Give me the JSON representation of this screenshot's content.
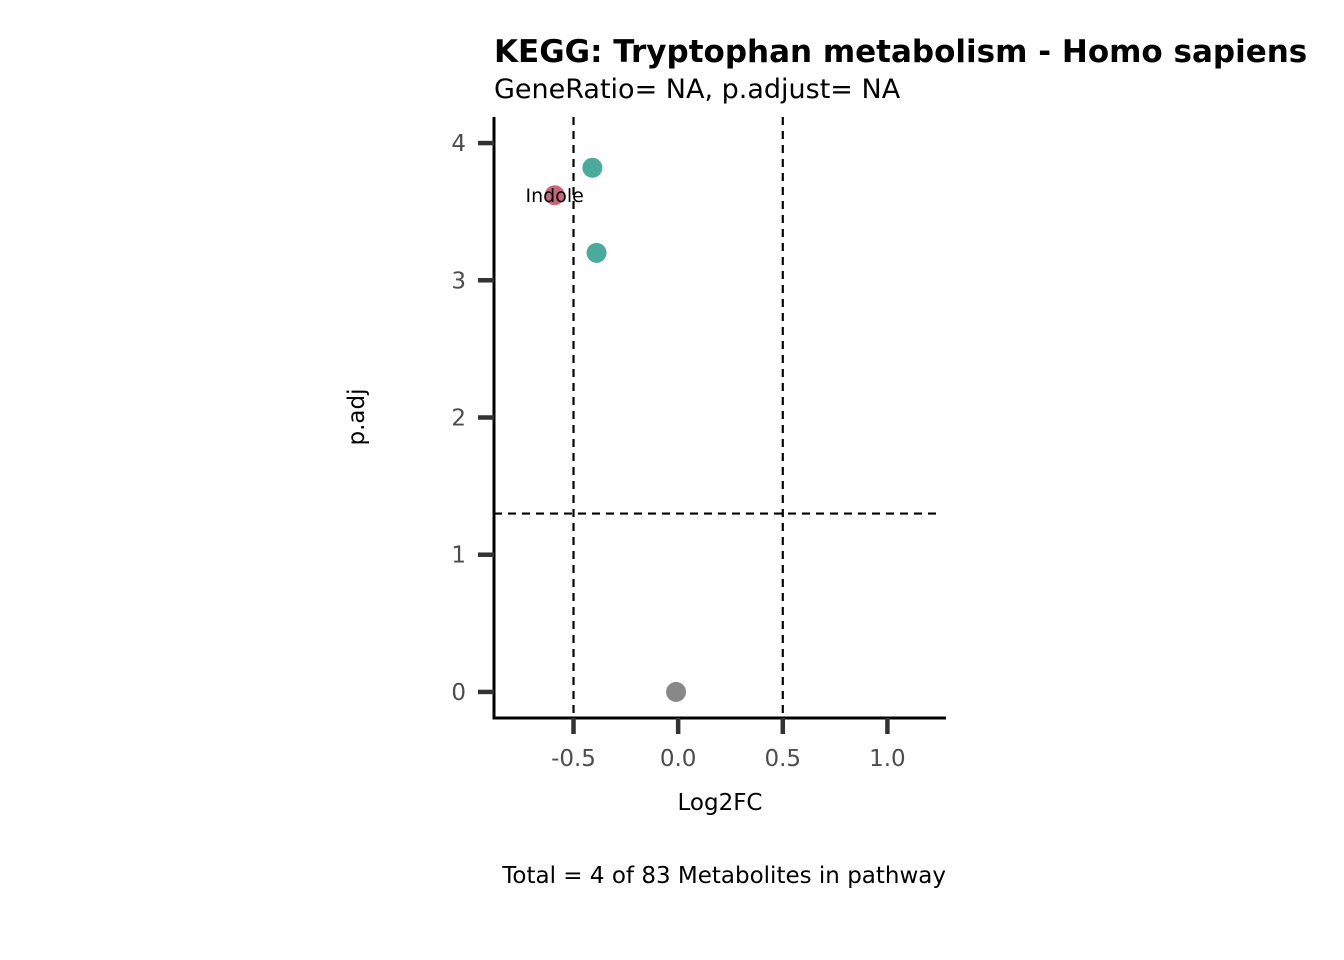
{
  "chart_data": {
    "type": "scatter",
    "title": "KEGG: Tryptophan metabolism - Homo sapiens",
    "subtitle": "GeneRatio= NA, p.adjust= NA",
    "xlabel": "Log2FC",
    "ylabel": "p.adj",
    "caption": "Total = 4 of 83 Metabolites in pathway",
    "xlim": [
      -0.88,
      1.28
    ],
    "ylim": [
      -0.19,
      4.19
    ],
    "xticks": [
      -0.5,
      0.0,
      0.5,
      1.0
    ],
    "xtick_labels": [
      "-0.5",
      "0.0",
      "0.5",
      "1.0"
    ],
    "yticks": [
      0,
      1,
      2,
      3,
      4
    ],
    "ytick_labels": [
      "0",
      "1",
      "2",
      "3",
      "4"
    ],
    "reference_lines": {
      "vertical": [
        -0.5,
        0.5
      ],
      "horizontal": [
        1.3
      ]
    },
    "grid": false,
    "legend": "none",
    "colors": {
      "teal": "#4aab9c",
      "pink": "#c9657b",
      "gray": "#888888"
    },
    "points": [
      {
        "x": -0.41,
        "y": 3.82,
        "color": "#4aab9c",
        "label": ""
      },
      {
        "x": -0.59,
        "y": 3.62,
        "color": "#c9657b",
        "label": "Indole"
      },
      {
        "x": -0.39,
        "y": 3.2,
        "color": "#4aab9c",
        "label": ""
      },
      {
        "x": -0.01,
        "y": 0.0,
        "color": "#888888",
        "label": ""
      }
    ]
  }
}
